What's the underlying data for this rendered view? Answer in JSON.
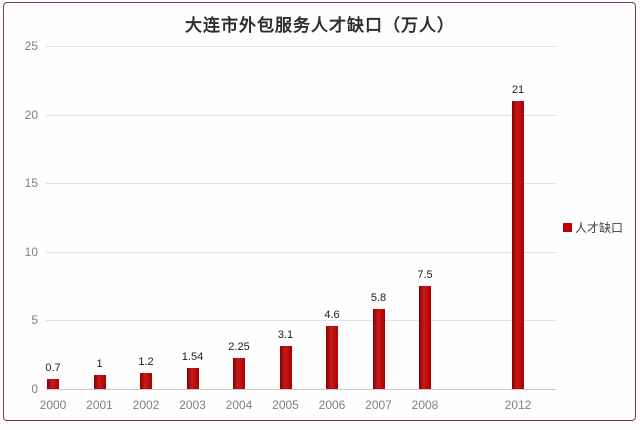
{
  "chart_data": {
    "type": "bar",
    "title": "大连市外包服务人才缺口（万人）",
    "categories": [
      "2000",
      "2001",
      "2002",
      "2003",
      "2004",
      "2005",
      "2006",
      "2007",
      "2008",
      "2012"
    ],
    "values": [
      0.7,
      1,
      1.2,
      1.54,
      2.25,
      3.1,
      4.6,
      5.8,
      7.5,
      21
    ],
    "value_labels": [
      "0.7",
      "1",
      "1.2",
      "1.54",
      "2.25",
      "3.1",
      "4.6",
      "5.8",
      "7.5",
      "21"
    ],
    "x_slots": [
      0,
      1,
      2,
      3,
      4,
      5,
      6,
      7,
      8,
      10
    ],
    "y_ticks": [
      0,
      5,
      10,
      15,
      20,
      25
    ],
    "ylim": [
      0,
      25
    ],
    "xlabel": "",
    "ylabel": "",
    "grid": true,
    "legend": [
      "人才缺口"
    ],
    "legend_position": "right"
  },
  "colors": {
    "bar": "#c00000",
    "frame_border": "#7e3a3f",
    "gridline": "#e0e0e0",
    "baseline": "#c9c9c9",
    "axis_text": "#808080",
    "value_label_text": "#1c1c1c"
  }
}
